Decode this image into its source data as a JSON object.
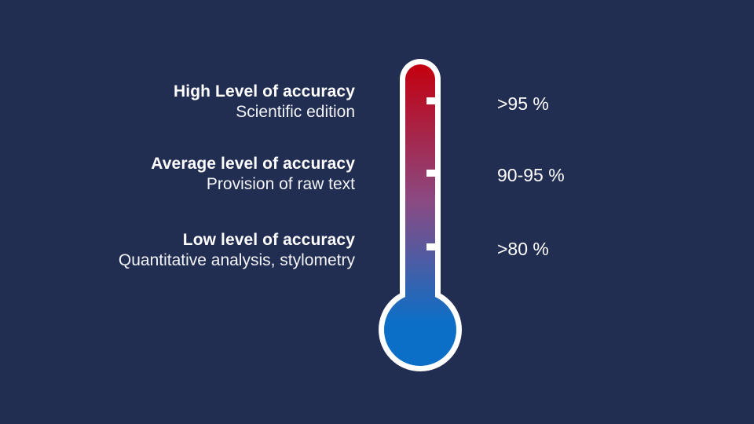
{
  "colors": {
    "background": "#222d52",
    "thermometer_outline": "#ffffff",
    "gradient_top": "#c3000f",
    "gradient_mid": "#8a4a83",
    "gradient_bottom": "#0b6fc7",
    "bulb": "#0a72c9"
  },
  "levels": [
    {
      "title": "High Level of accuracy",
      "subtitle": "Scientific edition",
      "percent": ">95 %"
    },
    {
      "title": "Average level of accuracy",
      "subtitle": "Provision of raw text",
      "percent": "90-95 %"
    },
    {
      "title": "Low level of accuracy",
      "subtitle": "Quantitative analysis, stylometry",
      "percent": ">80 %"
    }
  ]
}
